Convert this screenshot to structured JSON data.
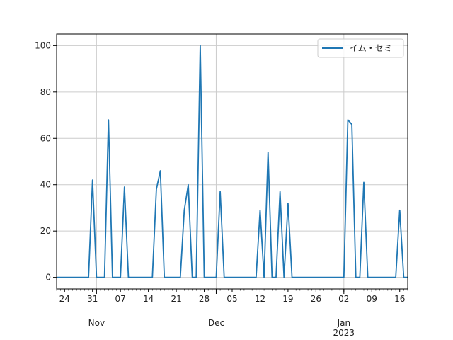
{
  "chart_data": {
    "type": "line",
    "title": "",
    "xlabel": "",
    "ylabel": "",
    "x_start": "2022-10-22",
    "x_end": "2023-01-18",
    "ylim": [
      -5,
      105
    ],
    "grid": true,
    "legend": "top-right",
    "line_color": "#1f77b4",
    "x_ticks": [
      "24",
      "31",
      "07",
      "14",
      "21",
      "28",
      "05",
      "12",
      "19",
      "26",
      "02",
      "09",
      "16"
    ],
    "x_tick_dates": [
      "2022-10-24",
      "2022-10-31",
      "2022-11-07",
      "2022-11-14",
      "2022-11-21",
      "2022-11-28",
      "2022-12-05",
      "2022-12-12",
      "2022-12-19",
      "2022-12-26",
      "2023-01-02",
      "2023-01-09",
      "2023-01-16"
    ],
    "x_secondary": [
      {
        "label": "Nov",
        "date": "2022-11-01"
      },
      {
        "label": "Dec",
        "date": "2022-12-01"
      },
      {
        "label": "Jan\n2023",
        "date": "2023-01-02"
      }
    ],
    "y_ticks": [
      0,
      20,
      40,
      60,
      80,
      100
    ],
    "series": [
      {
        "name": "イム・セミ",
        "color": "#1f77b4",
        "points": [
          [
            "2022-10-22",
            0
          ],
          [
            "2022-10-30",
            0
          ],
          [
            "2022-10-31",
            42
          ],
          [
            "2022-11-01",
            0
          ],
          [
            "2022-11-03",
            0
          ],
          [
            "2022-11-04",
            68
          ],
          [
            "2022-11-05",
            0
          ],
          [
            "2022-11-07",
            0
          ],
          [
            "2022-11-08",
            39
          ],
          [
            "2022-11-09",
            0
          ],
          [
            "2022-11-15",
            0
          ],
          [
            "2022-11-16",
            38
          ],
          [
            "2022-11-17",
            46
          ],
          [
            "2022-11-18",
            0
          ],
          [
            "2022-11-22",
            0
          ],
          [
            "2022-11-23",
            29
          ],
          [
            "2022-11-24",
            40
          ],
          [
            "2022-11-25",
            0
          ],
          [
            "2022-11-26",
            0
          ],
          [
            "2022-11-27",
            100
          ],
          [
            "2022-11-28",
            0
          ],
          [
            "2022-12-01",
            0
          ],
          [
            "2022-12-02",
            37
          ],
          [
            "2022-12-03",
            0
          ],
          [
            "2022-12-11",
            0
          ],
          [
            "2022-12-12",
            29
          ],
          [
            "2022-12-13",
            0
          ],
          [
            "2022-12-14",
            54
          ],
          [
            "2022-12-15",
            0
          ],
          [
            "2022-12-16",
            0
          ],
          [
            "2022-12-17",
            37
          ],
          [
            "2022-12-18",
            0
          ],
          [
            "2022-12-19",
            32
          ],
          [
            "2022-12-20",
            0
          ],
          [
            "2023-01-02",
            0
          ],
          [
            "2023-01-03",
            68
          ],
          [
            "2023-01-04",
            66
          ],
          [
            "2023-01-05",
            0
          ],
          [
            "2023-01-06",
            0
          ],
          [
            "2023-01-07",
            41
          ],
          [
            "2023-01-08",
            0
          ],
          [
            "2023-01-15",
            0
          ],
          [
            "2023-01-16",
            29
          ],
          [
            "2023-01-17",
            0
          ],
          [
            "2023-01-18",
            0
          ]
        ]
      }
    ]
  }
}
